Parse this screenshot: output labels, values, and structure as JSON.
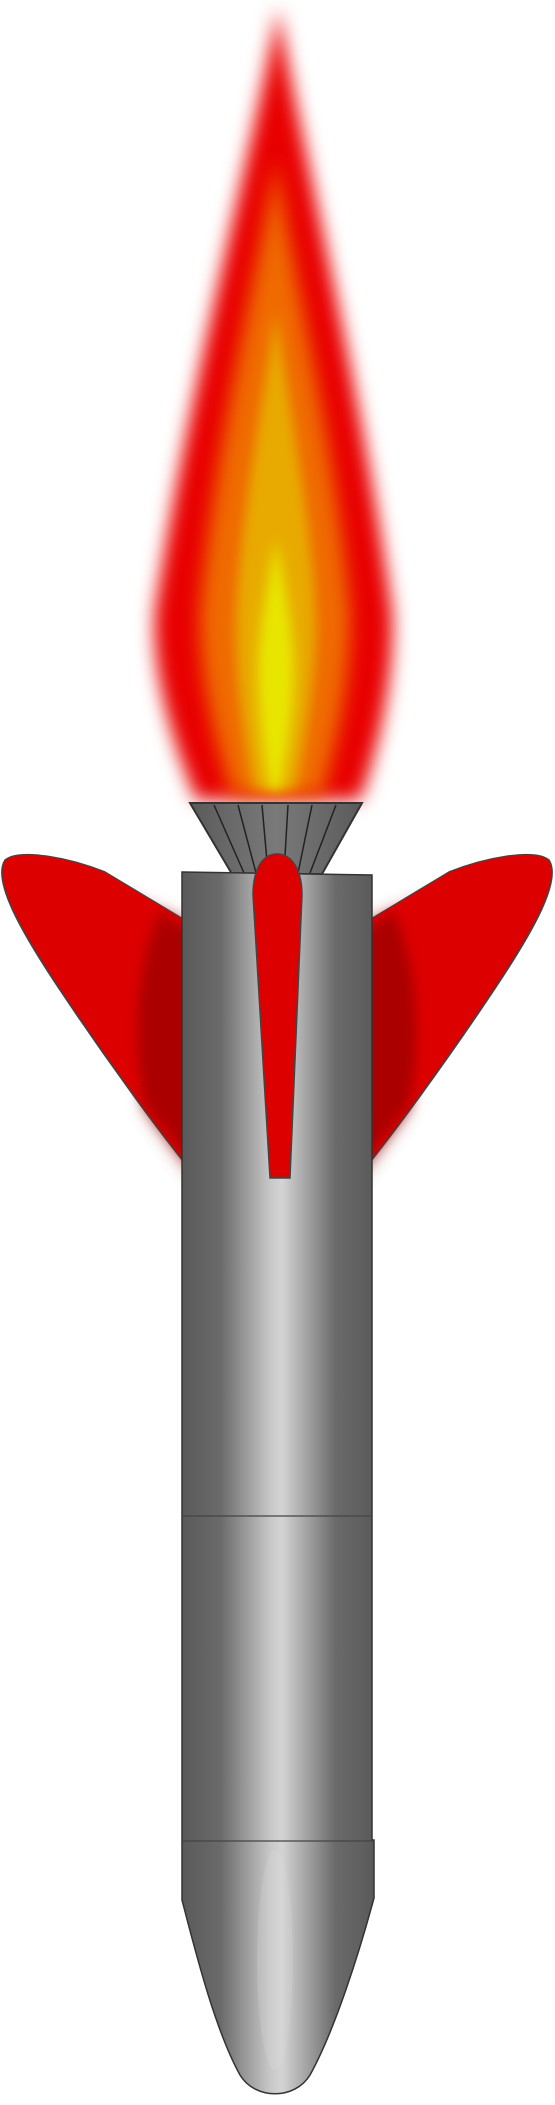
{
  "illustration": {
    "subject": "rocket-with-flame",
    "orientation": "nose-down",
    "colors": {
      "background": "#ffffff",
      "flame_outer": "#e80000",
      "flame_middle": "#ef6a00",
      "flame_inner": "#e8aa00",
      "flame_core": "#e8e600",
      "fin_red": "#dd0000",
      "fin_shadow": "#990000",
      "body_dark": "#5e5e5e",
      "body_light": "#d2d2d2",
      "nozzle": "#5a5a5a",
      "outline": "#333333"
    }
  }
}
